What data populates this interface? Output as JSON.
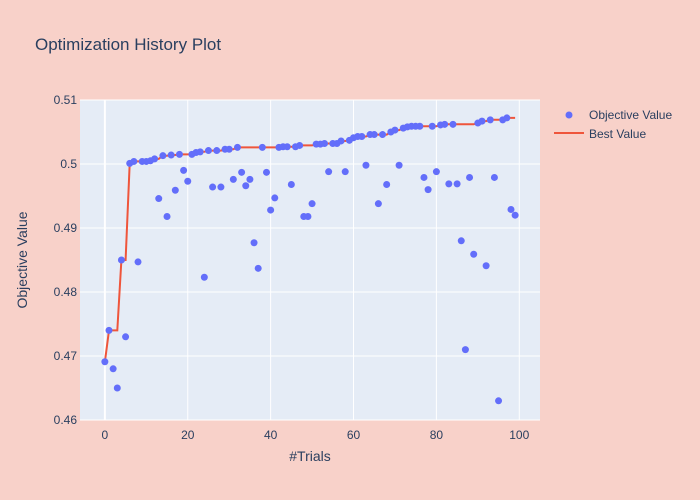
{
  "chart_data": {
    "type": "scatter",
    "title": "Optimization History Plot",
    "xlabel": "#Trials",
    "ylabel": "Objective Value",
    "xlim": [
      -6,
      105
    ],
    "ylim": [
      0.46,
      0.51
    ],
    "x_ticks": [
      0,
      20,
      40,
      60,
      80,
      100
    ],
    "y_ticks": [
      0.46,
      0.47,
      0.48,
      0.49,
      0.5,
      0.51
    ],
    "y_tick_labels": [
      "0.46",
      "0.47",
      "0.48",
      "0.49",
      "0.5",
      "0.51"
    ],
    "grid": true,
    "legend_position": "top-right",
    "colors": {
      "background": "#f8d1c9",
      "plot_background": "#e5ecf6",
      "objective": "#636efa",
      "best": "#ef553b"
    },
    "series": [
      {
        "name": "Objective Value",
        "mode": "markers",
        "x": [
          0,
          1,
          2,
          3,
          4,
          5,
          6,
          7,
          8,
          9,
          10,
          11,
          12,
          13,
          14,
          15,
          16,
          17,
          18,
          19,
          20,
          21,
          22,
          23,
          24,
          25,
          26,
          27,
          28,
          29,
          30,
          31,
          32,
          33,
          34,
          35,
          36,
          37,
          38,
          39,
          40,
          41,
          42,
          43,
          44,
          45,
          46,
          47,
          48,
          49,
          50,
          51,
          52,
          53,
          54,
          55,
          56,
          57,
          58,
          59,
          60,
          61,
          62,
          63,
          64,
          65,
          66,
          67,
          68,
          69,
          70,
          71,
          72,
          73,
          74,
          75,
          76,
          77,
          78,
          79,
          80,
          81,
          82,
          83,
          84,
          85,
          86,
          87,
          88,
          89,
          90,
          91,
          92,
          93,
          94,
          95,
          96,
          97,
          98,
          99
        ],
        "y": [
          0.4691,
          0.474,
          0.468,
          0.465,
          0.485,
          0.473,
          0.5001,
          0.5004,
          0.4847,
          0.5004,
          0.5004,
          0.5005,
          0.5008,
          0.4946,
          0.5013,
          0.4918,
          0.5014,
          0.4959,
          0.5015,
          0.499,
          0.4973,
          0.5015,
          0.5018,
          0.5019,
          0.4823,
          0.5021,
          0.4964,
          0.5021,
          0.4964,
          0.5023,
          0.5023,
          0.4976,
          0.5026,
          0.4987,
          0.4966,
          0.4976,
          0.4877,
          0.4837,
          0.5026,
          0.4987,
          0.4928,
          0.4947,
          0.5026,
          0.5027,
          0.5027,
          0.4968,
          0.5027,
          0.5029,
          0.4918,
          0.4918,
          0.4938,
          0.5031,
          0.5031,
          0.5032,
          0.4988,
          0.5032,
          0.5032,
          0.5036,
          0.4988,
          0.5037,
          0.5041,
          0.5043,
          0.5043,
          0.4998,
          0.5046,
          0.5046,
          0.4938,
          0.5046,
          0.4968,
          0.505,
          0.5053,
          0.4998,
          0.5056,
          0.5058,
          0.5059,
          0.5059,
          0.5059,
          0.4979,
          0.496,
          0.5059,
          0.4988,
          0.5061,
          0.5062,
          0.4969,
          0.5062,
          0.4969,
          0.488,
          0.471,
          0.4979,
          0.4859,
          0.5064,
          0.5067,
          0.4841,
          0.5069,
          0.4979,
          0.463,
          0.5069,
          0.5072,
          0.4929,
          0.492
        ]
      },
      {
        "name": "Best Value",
        "mode": "lines",
        "derived_from": "running maximum of Objective Value"
      }
    ]
  }
}
